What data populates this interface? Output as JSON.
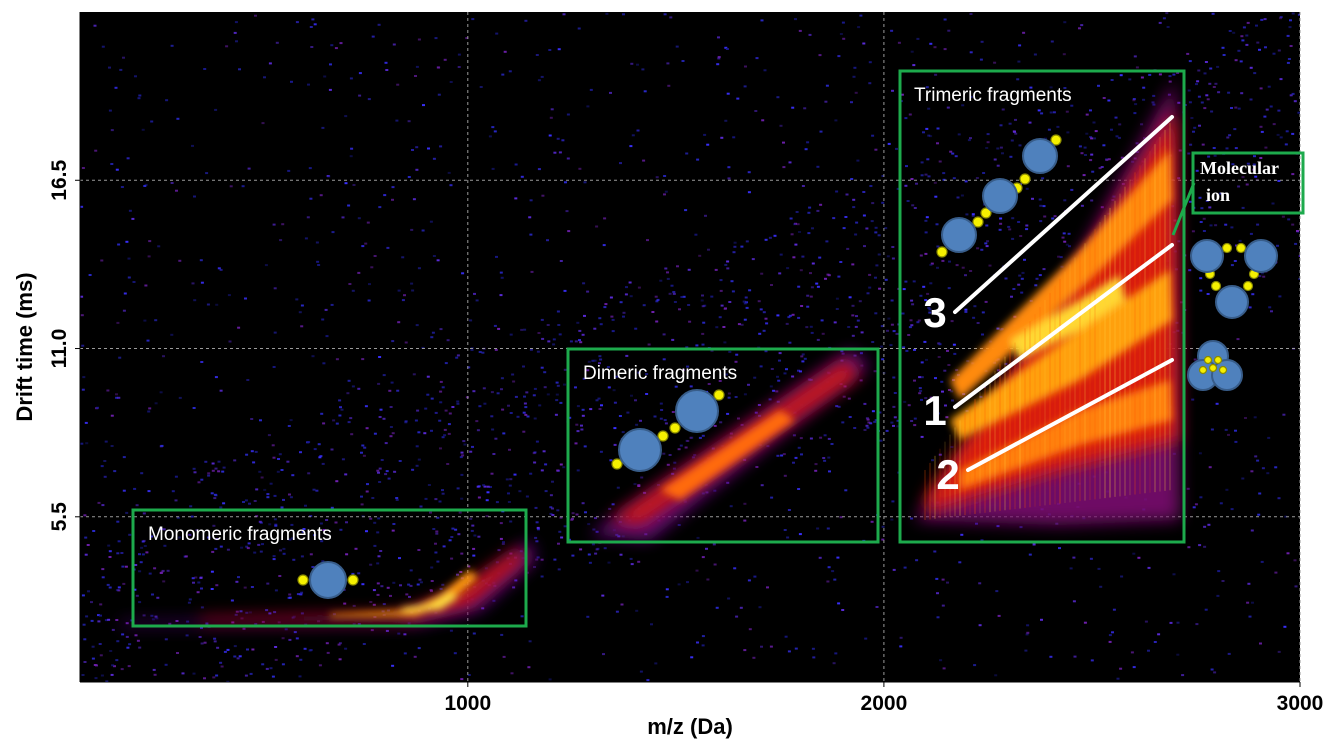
{
  "chart_data": {
    "type": "density",
    "xlabel": "m/z (Da)",
    "ylabel": "Drift time (ms)",
    "xlim": [
      68,
      3000
    ],
    "ylim": [
      0.1,
      22
    ],
    "xticks": [
      1000,
      2000,
      3000
    ],
    "yticks": [
      5.5,
      {
        "value": 11,
        "label": "11.0"
      },
      16.5
    ],
    "grid": true,
    "annotations": {
      "monomeric": "Monomeric fragments",
      "dimeric": "Dimeric fragments",
      "trimeric": "Trimeric fragments",
      "molecular_ion": [
        "Molecular",
        "ion"
      ],
      "conformers": [
        "1",
        "2",
        "3"
      ]
    }
  }
}
